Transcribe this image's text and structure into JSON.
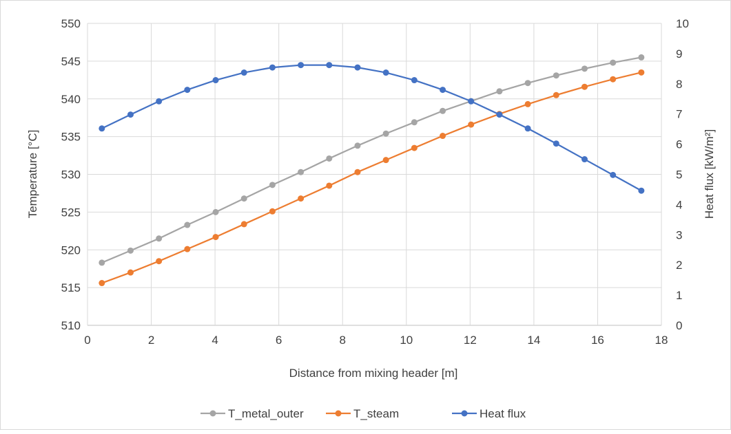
{
  "chart_data": {
    "type": "line",
    "xlabel": "Distance from mixing header [m]",
    "ylabel_left": "Temperature  [°C]",
    "ylabel_right": "Heat flux [kW/m²]",
    "xlim": [
      0,
      18
    ],
    "ylim_left": [
      510,
      550
    ],
    "ylim_right": [
      0,
      10
    ],
    "x_ticks": [
      "0",
      "2",
      "4",
      "6",
      "8",
      "10",
      "12",
      "14",
      "16",
      "18"
    ],
    "y_left_ticks": [
      "510",
      "515",
      "520",
      "525",
      "530",
      "535",
      "540",
      "545",
      "550"
    ],
    "y_right_ticks": [
      "0",
      "1",
      "2",
      "3",
      "4",
      "5",
      "6",
      "7",
      "8",
      "9",
      "10"
    ],
    "grid": true,
    "legend_position": "bottom",
    "x": [
      0.45,
      1.35,
      2.24,
      3.13,
      4.02,
      4.91,
      5.8,
      6.69,
      7.58,
      8.47,
      9.36,
      10.25,
      11.14,
      12.03,
      12.92,
      13.81,
      14.7,
      15.59,
      16.48,
      17.37
    ],
    "series": [
      {
        "name": "T_metal_outer",
        "axis": "left",
        "color": "#a5a5a5",
        "values": [
          518.3,
          519.9,
          521.5,
          523.3,
          525.0,
          526.8,
          528.6,
          530.3,
          532.1,
          533.8,
          535.4,
          536.9,
          538.4,
          539.7,
          541.0,
          542.1,
          543.1,
          544.0,
          544.8,
          545.5
        ]
      },
      {
        "name": "T_steam",
        "axis": "left",
        "color": "#ed7d31",
        "values": [
          515.6,
          517.0,
          518.5,
          520.1,
          521.7,
          523.4,
          525.1,
          526.8,
          528.5,
          530.3,
          531.9,
          533.5,
          535.1,
          536.6,
          538.0,
          539.3,
          540.5,
          541.6,
          542.6,
          543.5
        ]
      },
      {
        "name": "Heat flux",
        "axis": "right",
        "color": "#4472c4",
        "values": [
          6.52,
          6.98,
          7.42,
          7.8,
          8.12,
          8.37,
          8.54,
          8.62,
          8.62,
          8.54,
          8.37,
          8.12,
          7.8,
          7.42,
          6.98,
          6.52,
          6.02,
          5.5,
          4.98,
          4.46
        ]
      }
    ]
  }
}
